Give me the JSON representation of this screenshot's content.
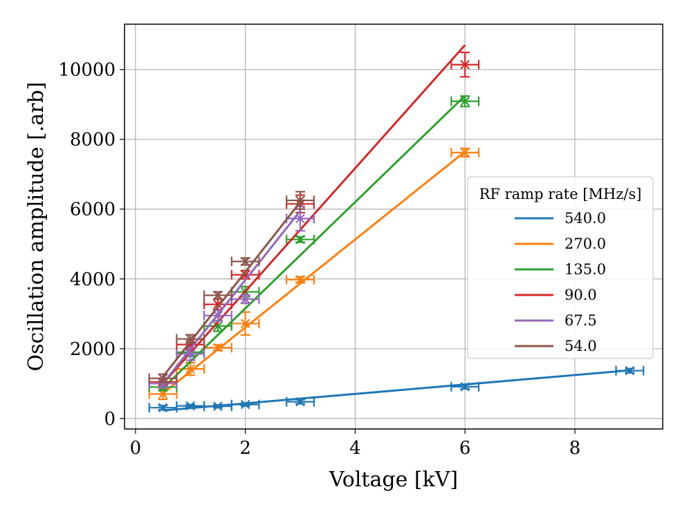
{
  "chart_data": {
    "type": "line",
    "xlabel": "Voltage [kV]",
    "ylabel": "Oscillation amplitude [.arb]",
    "xlim": [
      -0.2,
      9.6
    ],
    "ylim": [
      -300,
      11300
    ],
    "xticks": [
      0,
      2,
      4,
      6,
      8
    ],
    "yticks": [
      0,
      2000,
      4000,
      6000,
      8000,
      10000
    ],
    "x_error": 0.25,
    "grid": true,
    "legend": {
      "title": "RF ramp rate [MHz/s]",
      "position": "center-right"
    },
    "series": [
      {
        "name": "540.0",
        "color": "#1f77b4",
        "points": [
          [
            0.5,
            310
          ],
          [
            1.0,
            360
          ],
          [
            1.5,
            350
          ],
          [
            2.0,
            400
          ],
          [
            3.0,
            480
          ],
          [
            6.0,
            910
          ],
          [
            9.0,
            1370
          ]
        ],
        "yerr": [
          60,
          40,
          40,
          40,
          60,
          60,
          60
        ],
        "fit": [
          [
            0.5,
            230
          ],
          [
            9.0,
            1380
          ]
        ]
      },
      {
        "name": "270.0",
        "color": "#ff7f0e",
        "points": [
          [
            0.5,
            700
          ],
          [
            1.0,
            1420
          ],
          [
            1.5,
            2030
          ],
          [
            2.0,
            2720
          ],
          [
            3.0,
            3980
          ],
          [
            6.0,
            7620
          ]
        ],
        "yerr": [
          150,
          180,
          80,
          330,
          80,
          120
        ],
        "fit": [
          [
            0.5,
            720
          ],
          [
            6.0,
            7650
          ]
        ]
      },
      {
        "name": "135.0",
        "color": "#2ca02c",
        "points": [
          [
            0.5,
            900
          ],
          [
            1.0,
            1900
          ],
          [
            1.5,
            2650
          ],
          [
            2.0,
            3630
          ],
          [
            3.0,
            5130
          ],
          [
            6.0,
            9090
          ]
        ],
        "yerr": [
          100,
          120,
          150,
          150,
          80,
          150
        ],
        "fit": [
          [
            0.5,
            870
          ],
          [
            6.0,
            9250
          ]
        ]
      },
      {
        "name": "90.0",
        "color": "#d62728",
        "points": [
          [
            0.5,
            1050
          ],
          [
            1.0,
            2120
          ],
          [
            1.5,
            3270
          ],
          [
            2.0,
            4120
          ],
          [
            3.0,
            6150
          ],
          [
            6.0,
            10140
          ]
        ],
        "yerr": [
          100,
          150,
          150,
          120,
          250,
          350
        ],
        "fit": [
          [
            0.5,
            1000
          ],
          [
            6.0,
            10700
          ]
        ]
      },
      {
        "name": "67.5",
        "color": "#9467bd",
        "points": [
          [
            0.5,
            1000
          ],
          [
            1.0,
            1850
          ],
          [
            1.5,
            2950
          ],
          [
            2.0,
            3420
          ],
          [
            3.0,
            5730
          ]
        ],
        "yerr": [
          120,
          180,
          150,
          120,
          350
        ],
        "fit": [
          [
            0.5,
            1000
          ],
          [
            3.0,
            5950
          ]
        ]
      },
      {
        "name": "54.0",
        "color": "#8c564b",
        "points": [
          [
            0.5,
            1150
          ],
          [
            1.0,
            2280
          ],
          [
            1.5,
            3530
          ],
          [
            2.0,
            4500
          ],
          [
            3.0,
            6250
          ]
        ],
        "yerr": [
          120,
          120,
          100,
          100,
          250
        ],
        "fit": [
          [
            0.5,
            1200
          ],
          [
            3.0,
            6200
          ]
        ]
      }
    ]
  }
}
